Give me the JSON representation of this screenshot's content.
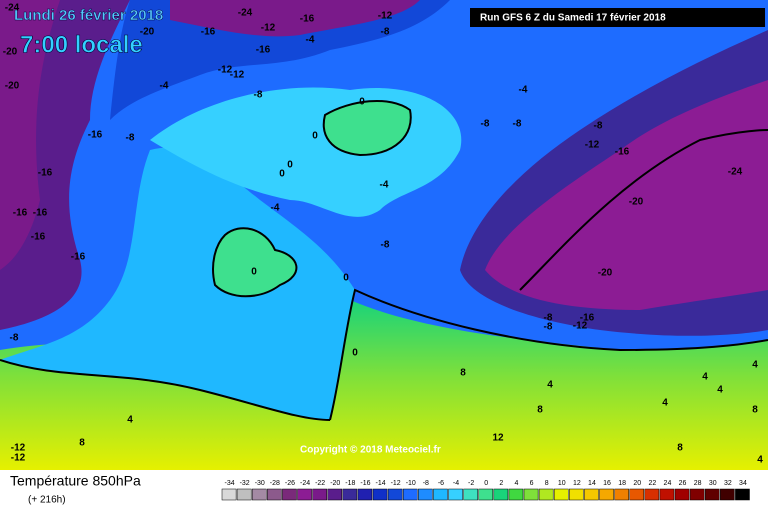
{
  "header": {
    "date": "Lundi 26 février 2018",
    "time": "7:00 locale",
    "run": "Run GFS 6 Z du Samedi 17 février 2018"
  },
  "map": {
    "copyright": "Copyright © 2018 Meteociel.fr",
    "contour_labels": [
      -24,
      -20,
      -20,
      -16,
      -16,
      -16,
      -16,
      -16,
      -16,
      -8,
      -4,
      -8,
      -24,
      -20,
      -16,
      -16,
      -12,
      -8,
      -12,
      -16,
      -12,
      -12,
      -8,
      -4,
      0,
      0,
      0,
      0,
      -4,
      -4,
      0,
      0,
      0,
      -4,
      -8,
      -8,
      -8,
      -12,
      -16,
      -24,
      -20,
      -20,
      -8,
      -8,
      -8,
      -12,
      -16,
      4,
      8,
      -12,
      -12,
      12,
      8,
      4,
      8,
      4,
      4,
      4,
      8,
      4,
      4,
      8
    ]
  },
  "legend": {
    "title": "Température 850hPa",
    "lead": "(+ 216h)",
    "ticks": [
      -34,
      -32,
      -30,
      -28,
      -26,
      -24,
      -22,
      -20,
      -18,
      -16,
      -14,
      -12,
      -10,
      -8,
      -6,
      -4,
      -2,
      0,
      2,
      4,
      6,
      8,
      10,
      12,
      14,
      16,
      18,
      20,
      22,
      24,
      26,
      28,
      30,
      32,
      34
    ]
  }
}
